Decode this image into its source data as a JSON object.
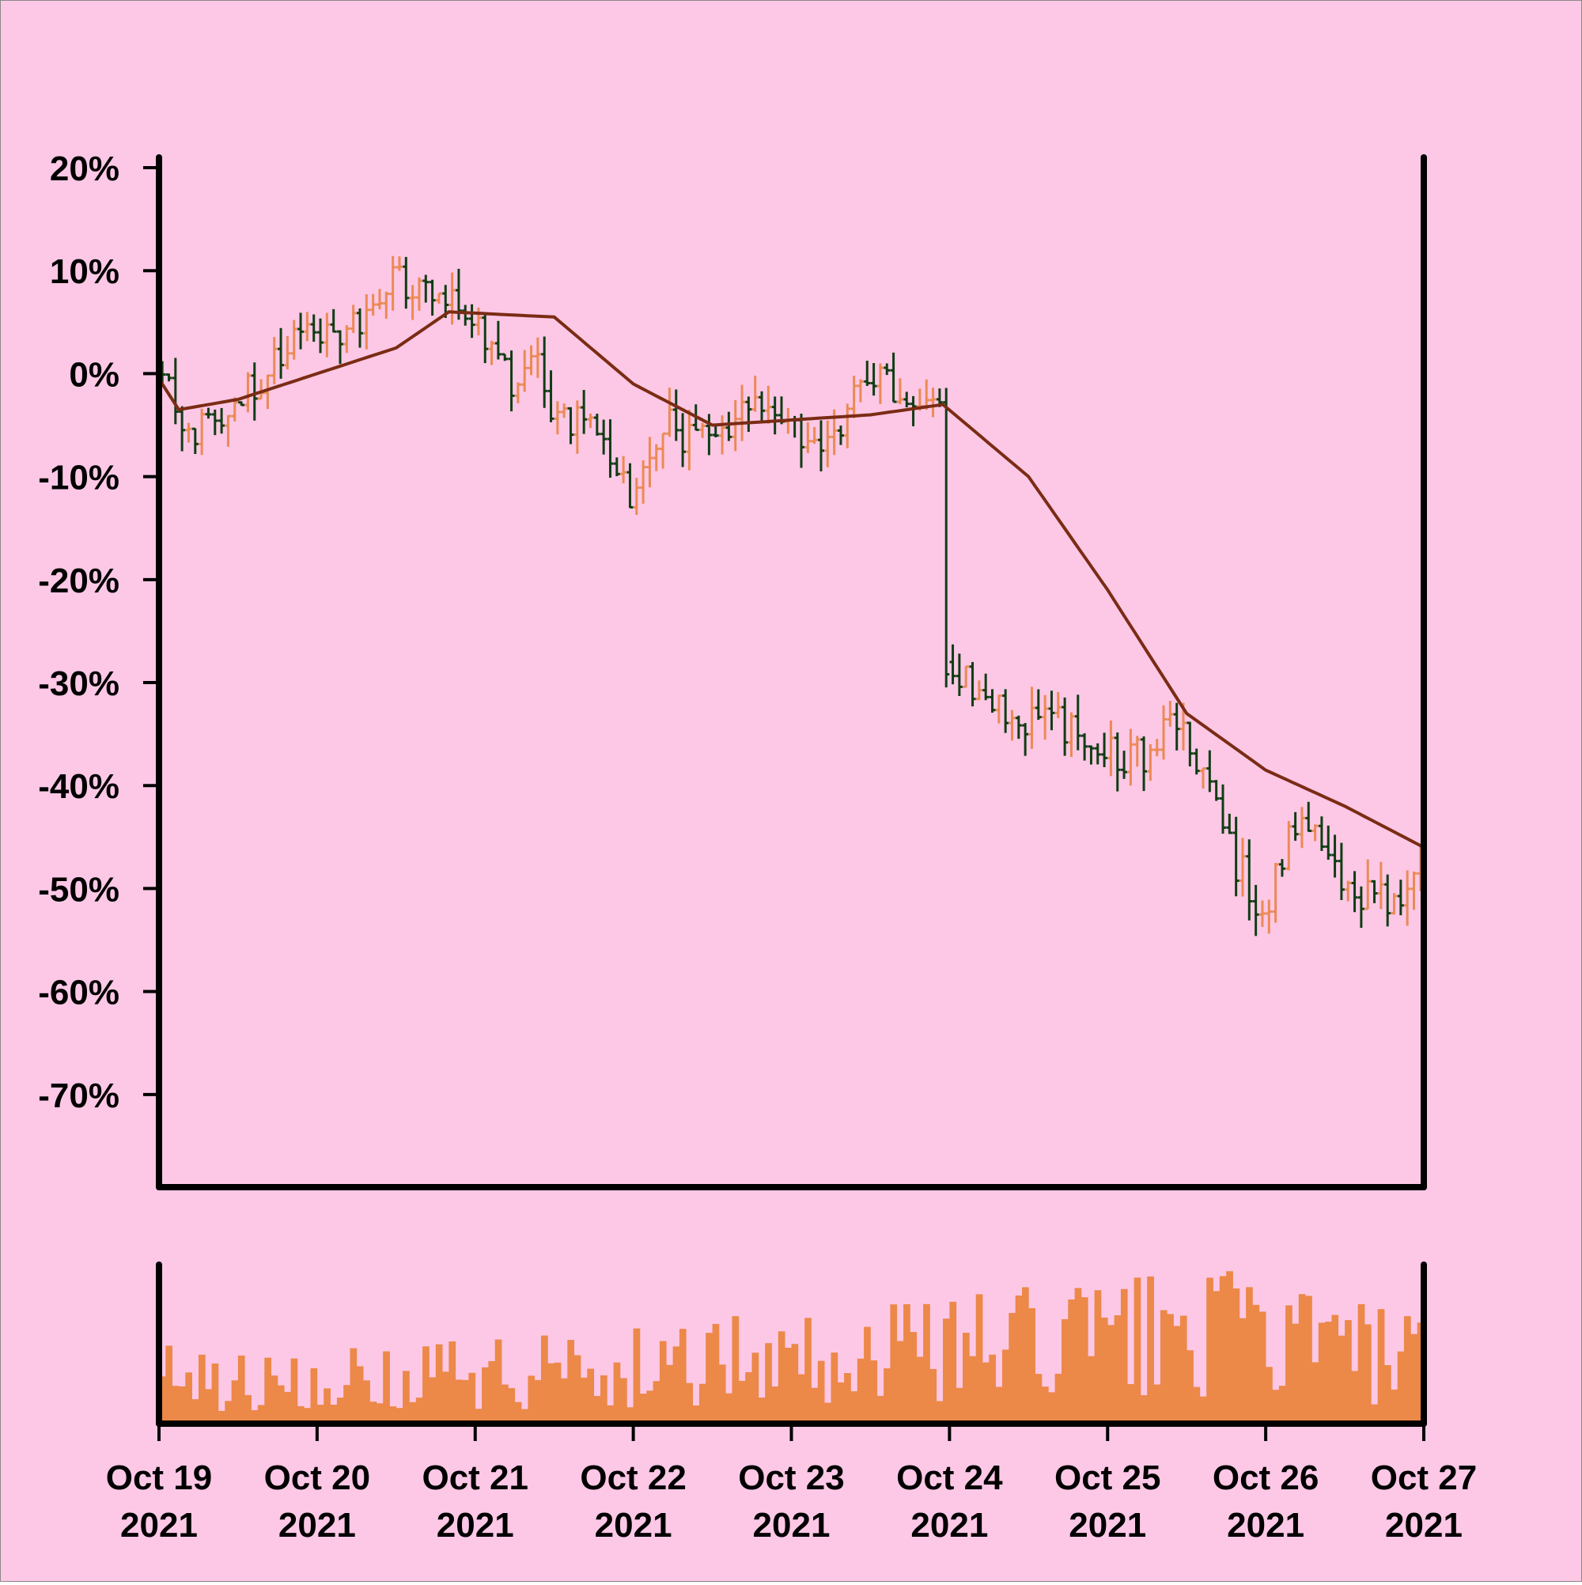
{
  "chart_data": {
    "type": "ohlc",
    "title": "",
    "xlabel": "",
    "ylabel": "",
    "y_unit": "percent change",
    "ylim": [
      -79,
      21
    ],
    "yticks": [
      20,
      10,
      0,
      -10,
      -20,
      -30,
      -40,
      -50,
      -60,
      -70
    ],
    "ytick_labels": [
      "20%",
      "10%",
      "0%",
      "-10%",
      "-20%",
      "-30%",
      "-40%",
      "-50%",
      "-60%",
      "-70%"
    ],
    "x_range": [
      "2021-10-19",
      "2021-10-27"
    ],
    "xticks": [
      {
        "date": "2021-10-19",
        "line1": "Oct 19",
        "line2": "2021"
      },
      {
        "date": "2021-10-20",
        "line1": "Oct 20",
        "line2": "2021"
      },
      {
        "date": "2021-10-21",
        "line1": "Oct 21",
        "line2": "2021"
      },
      {
        "date": "2021-10-22",
        "line1": "Oct 22",
        "line2": "2021"
      },
      {
        "date": "2021-10-23",
        "line1": "Oct 23",
        "line2": "2021"
      },
      {
        "date": "2021-10-24",
        "line1": "Oct 24",
        "line2": "2021"
      },
      {
        "date": "2021-10-25",
        "line1": "Oct 25",
        "line2": "2021"
      },
      {
        "date": "2021-10-26",
        "line1": "Oct 26",
        "line2": "2021"
      },
      {
        "date": "2021-10-27",
        "line1": "Oct 27",
        "line2": "2021"
      }
    ],
    "grid": false,
    "legend": "none",
    "bar_interval_hours": 1,
    "price_anchors": [
      [
        "2021-10-19T00",
        0
      ],
      [
        "2021-10-19T06",
        -6
      ],
      [
        "2021-10-19T12",
        -2
      ],
      [
        "2021-10-19T18",
        1
      ],
      [
        "2021-10-20T00",
        4
      ],
      [
        "2021-10-20T06",
        5
      ],
      [
        "2021-10-20T12",
        9
      ],
      [
        "2021-10-20T18",
        8
      ],
      [
        "2021-10-21T00",
        5
      ],
      [
        "2021-10-21T06",
        -1
      ],
      [
        "2021-10-21T09",
        3
      ],
      [
        "2021-10-21T12",
        -3
      ],
      [
        "2021-10-21T18",
        -5
      ],
      [
        "2021-10-22T00",
        -11
      ],
      [
        "2021-10-22T06",
        -5
      ],
      [
        "2021-10-22T12",
        -7
      ],
      [
        "2021-10-22T18",
        -2
      ],
      [
        "2021-10-23T00",
        -5
      ],
      [
        "2021-10-23T06",
        -6
      ],
      [
        "2021-10-23T12",
        -1
      ],
      [
        "2021-10-23T18",
        -2
      ],
      [
        "2021-10-23T23",
        -2
      ],
      [
        "2021-10-24T00",
        -28
      ],
      [
        "2021-10-24T06",
        -31
      ],
      [
        "2021-10-24T12",
        -34
      ],
      [
        "2021-10-24T18",
        -34
      ],
      [
        "2021-10-25T00",
        -37
      ],
      [
        "2021-10-25T06",
        -37
      ],
      [
        "2021-10-25T12",
        -34
      ],
      [
        "2021-10-25T18",
        -45
      ],
      [
        "2021-10-26T00",
        -52
      ],
      [
        "2021-10-26T06",
        -42
      ],
      [
        "2021-10-26T12",
        -49
      ],
      [
        "2021-10-26T18",
        -51
      ],
      [
        "2021-10-27T00",
        -49
      ]
    ],
    "moving_average": [
      [
        "2021-10-19T00",
        -0.5
      ],
      [
        "2021-10-19T03",
        -3.5
      ],
      [
        "2021-10-19T12",
        -2.5
      ],
      [
        "2021-10-20T00",
        0
      ],
      [
        "2021-10-20T12",
        2.5
      ],
      [
        "2021-10-20T20",
        6
      ],
      [
        "2021-10-21T12",
        5.5
      ],
      [
        "2021-10-22T00",
        -1
      ],
      [
        "2021-10-22T12",
        -5
      ],
      [
        "2021-10-23T00",
        -4.5
      ],
      [
        "2021-10-23T12",
        -4
      ],
      [
        "2021-10-23T23",
        -3
      ],
      [
        "2021-10-24T12",
        -10
      ],
      [
        "2021-10-25T00",
        -21
      ],
      [
        "2021-10-25T12",
        -33
      ],
      [
        "2021-10-26T00",
        -38.5
      ],
      [
        "2021-10-26T12",
        -42
      ],
      [
        "2021-10-27T00",
        -46
      ]
    ],
    "volume_profile": [
      [
        0,
        0.32
      ],
      [
        1,
        0.3
      ],
      [
        2,
        0.35
      ],
      [
        3,
        0.4
      ],
      [
        4,
        0.45
      ],
      [
        5,
        0.5
      ],
      [
        6,
        0.6
      ],
      [
        7,
        0.62
      ],
      [
        8,
        0.4
      ]
    ],
    "colors": {
      "background": "#fcc8e6",
      "axis": "#000000",
      "up": "#eb8a55",
      "down": "#0f3d13",
      "moving_average": "#7a2c14",
      "volume": "#ec8848"
    }
  }
}
